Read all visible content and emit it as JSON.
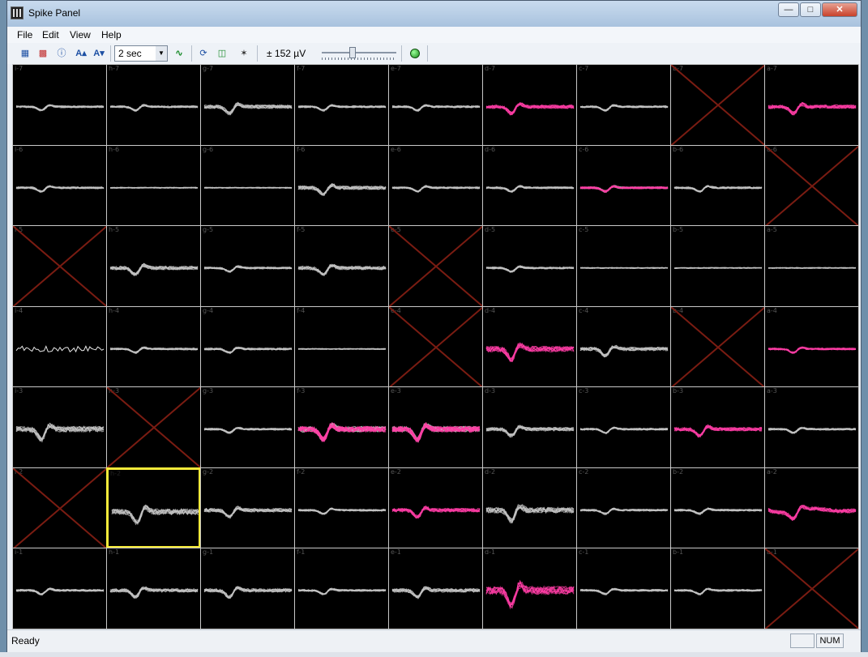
{
  "window": {
    "title": "Spike Panel"
  },
  "menu": [
    "File",
    "Edit",
    "View",
    "Help"
  ],
  "toolbar": {
    "time_window": "2 sec",
    "gain_label": "± 152 µV",
    "icons": [
      "channel-layout-icon",
      "color-icon",
      "info-icon",
      "font-increase-icon",
      "font-decrease-icon",
      "waveform-icon",
      "rotate-icon",
      "sort-icon",
      "antenna-icon",
      "run-indicator-icon"
    ]
  },
  "colors": {
    "trace": "#c4c4c4",
    "sorted": "#ff3ea5",
    "disabled_x": "#7a1c12",
    "selected_border": "#f5ea3a"
  },
  "grid": {
    "columns": 9,
    "rows": 7,
    "selected": "h-2",
    "cells": [
      {
        "label": "i-7",
        "state": "gray",
        "amp": "small"
      },
      {
        "label": "h-7",
        "state": "gray",
        "amp": "small"
      },
      {
        "label": "g-7",
        "state": "gray",
        "amp": "mid"
      },
      {
        "label": "f-7",
        "state": "gray",
        "amp": "small"
      },
      {
        "label": "e-7",
        "state": "gray",
        "amp": "small"
      },
      {
        "label": "d-7",
        "state": "pink",
        "amp": "mid"
      },
      {
        "label": "c-7",
        "state": "gray",
        "amp": "small"
      },
      {
        "label": "b-7",
        "state": "x"
      },
      {
        "label": "a-7",
        "state": "pink",
        "amp": "mid"
      },
      {
        "label": "i-6",
        "state": "gray",
        "amp": "small"
      },
      {
        "label": "h-6",
        "state": "gray",
        "amp": "flat"
      },
      {
        "label": "g-6",
        "state": "gray",
        "amp": "flat"
      },
      {
        "label": "f-6",
        "state": "gray",
        "amp": "mid"
      },
      {
        "label": "e-6",
        "state": "gray",
        "amp": "small"
      },
      {
        "label": "d-6",
        "state": "gray",
        "amp": "small"
      },
      {
        "label": "c-6",
        "state": "mixed",
        "amp": "small"
      },
      {
        "label": "b-6",
        "state": "gray",
        "amp": "small"
      },
      {
        "label": "a-6",
        "state": "x"
      },
      {
        "label": "i-5",
        "state": "x"
      },
      {
        "label": "h-5",
        "state": "gray",
        "amp": "mid"
      },
      {
        "label": "g-5",
        "state": "gray",
        "amp": "small"
      },
      {
        "label": "f-5",
        "state": "gray",
        "amp": "mid"
      },
      {
        "label": "e-5",
        "state": "x"
      },
      {
        "label": "d-5",
        "state": "gray",
        "amp": "small"
      },
      {
        "label": "c-5",
        "state": "gray",
        "amp": "flat"
      },
      {
        "label": "b-5",
        "state": "gray",
        "amp": "flat"
      },
      {
        "label": "a-5",
        "state": "gray",
        "amp": "flat"
      },
      {
        "label": "i-4",
        "state": "noise",
        "amp": "mid"
      },
      {
        "label": "h-4",
        "state": "gray",
        "amp": "small"
      },
      {
        "label": "g-4",
        "state": "gray",
        "amp": "small"
      },
      {
        "label": "f-4",
        "state": "gray",
        "amp": "flat"
      },
      {
        "label": "e-4",
        "state": "x"
      },
      {
        "label": "d-4",
        "state": "pink",
        "amp": "big"
      },
      {
        "label": "c-4",
        "state": "gray",
        "amp": "mid"
      },
      {
        "label": "b-4",
        "state": "x"
      },
      {
        "label": "a-4",
        "state": "pink",
        "amp": "small"
      },
      {
        "label": "i-3",
        "state": "gray",
        "amp": "big"
      },
      {
        "label": "h-3",
        "state": "x"
      },
      {
        "label": "g-3",
        "state": "gray",
        "amp": "small"
      },
      {
        "label": "f-3",
        "state": "mixed",
        "amp": "big"
      },
      {
        "label": "e-3",
        "state": "mixed",
        "amp": "big"
      },
      {
        "label": "d-3",
        "state": "gray",
        "amp": "mid"
      },
      {
        "label": "c-3",
        "state": "gray",
        "amp": "small"
      },
      {
        "label": "b-3",
        "state": "pink",
        "amp": "mid"
      },
      {
        "label": "a-3",
        "state": "gray",
        "amp": "small"
      },
      {
        "label": "i-2",
        "state": "x"
      },
      {
        "label": "h-2",
        "state": "gray",
        "amp": "big"
      },
      {
        "label": "g-2",
        "state": "gray",
        "amp": "mid"
      },
      {
        "label": "f-2",
        "state": "gray",
        "amp": "small"
      },
      {
        "label": "e-2",
        "state": "pink",
        "amp": "mid"
      },
      {
        "label": "d-2",
        "state": "gray",
        "amp": "big"
      },
      {
        "label": "c-2",
        "state": "gray",
        "amp": "small"
      },
      {
        "label": "b-2",
        "state": "gray",
        "amp": "small"
      },
      {
        "label": "a-2",
        "state": "pink",
        "amp": "wave"
      },
      {
        "label": "i-1",
        "state": "gray",
        "amp": "small"
      },
      {
        "label": "h-1",
        "state": "gray",
        "amp": "mid"
      },
      {
        "label": "g-1",
        "state": "gray",
        "amp": "mid"
      },
      {
        "label": "f-1",
        "state": "gray",
        "amp": "small"
      },
      {
        "label": "e-1",
        "state": "gray",
        "amp": "mid"
      },
      {
        "label": "d-1",
        "state": "pink",
        "amp": "huge"
      },
      {
        "label": "c-1",
        "state": "gray",
        "amp": "small"
      },
      {
        "label": "b-1",
        "state": "gray",
        "amp": "small"
      },
      {
        "label": "a-1",
        "state": "x"
      }
    ]
  },
  "status": {
    "text": "Ready",
    "indicator": "NUM"
  }
}
